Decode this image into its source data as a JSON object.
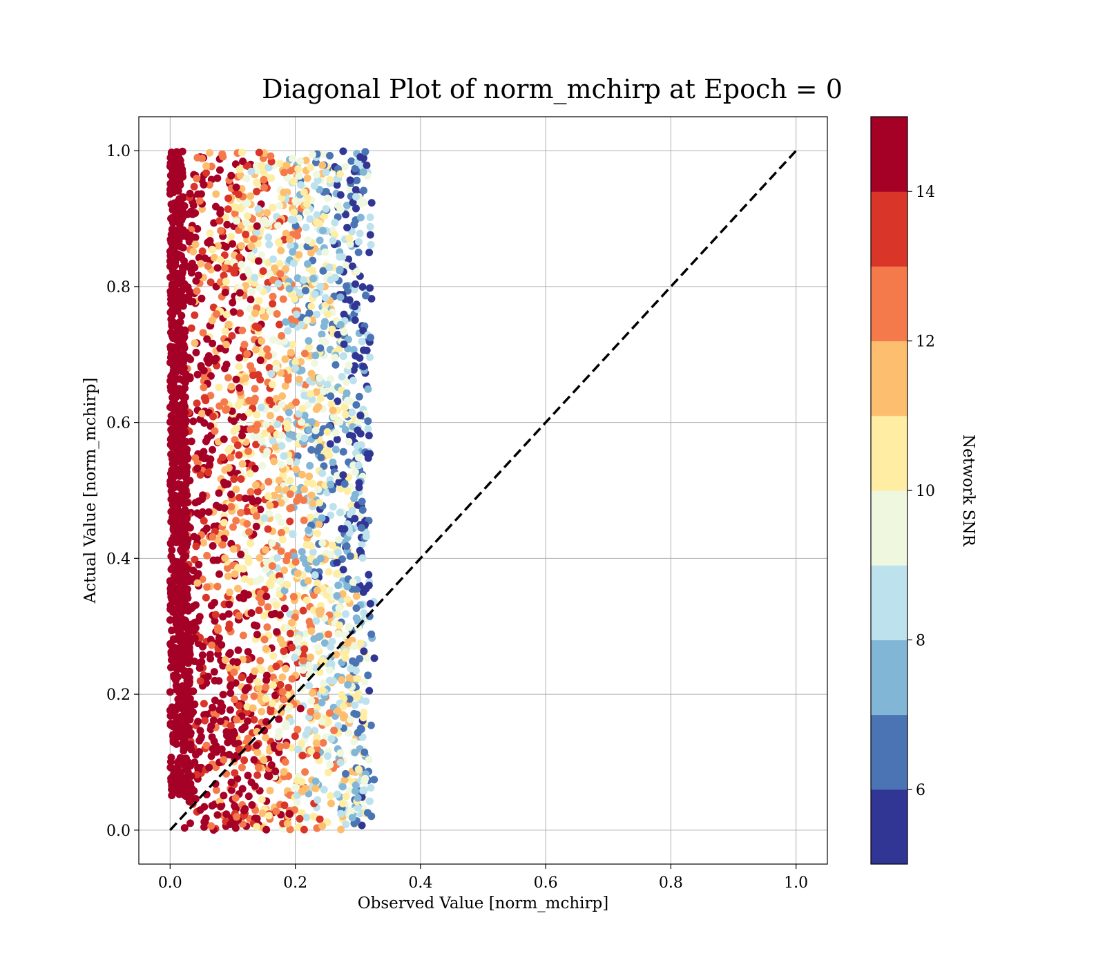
{
  "chart_data": {
    "type": "scatter",
    "title": "Diagonal Plot of norm_mchirp at Epoch = 0",
    "xlabel": "Observed Value [norm_mchirp]",
    "ylabel": "Actual Value [norm_mchirp]",
    "xlim": [
      -0.05,
      1.05
    ],
    "ylim": [
      -0.05,
      1.05
    ],
    "xticks": [
      0.0,
      0.2,
      0.4,
      0.6,
      0.8,
      1.0
    ],
    "yticks": [
      0.0,
      0.2,
      0.4,
      0.6,
      0.8,
      1.0
    ],
    "tick_labels": [
      "0.0",
      "0.2",
      "0.4",
      "0.6",
      "0.8",
      "1.0"
    ],
    "grid": true,
    "reference_line": {
      "style": "dashed",
      "color": "#000000",
      "x": [
        0.0,
        1.0
      ],
      "y": [
        0.0,
        1.0
      ]
    },
    "colorbar": {
      "label": "Network SNR",
      "range": [
        5,
        15
      ],
      "ticks": [
        6,
        8,
        10,
        12,
        14
      ],
      "tick_labels": [
        "6",
        "8",
        "10",
        "12",
        "14"
      ],
      "colors": [
        "#313695",
        "#4a74b4",
        "#81b6d6",
        "#bde2ee",
        "#eff8df",
        "#feeda2",
        "#fdbf6f",
        "#f57a4b",
        "#d93528",
        "#a50026"
      ]
    },
    "points_note_clusters": [
      {
        "x_range": [
          0.0,
          0.02
        ],
        "y_range": [
          0.05,
          1.0
        ],
        "snr": 14.5
      },
      {
        "x_range": [
          0.02,
          0.34
        ],
        "y_range": [
          0.0,
          1.0
        ],
        "snr_range": [
          5,
          15
        ]
      }
    ]
  }
}
